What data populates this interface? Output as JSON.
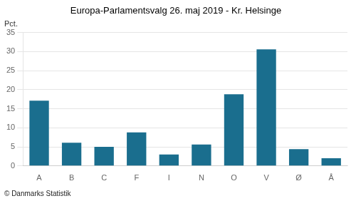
{
  "chart_data": {
    "type": "bar",
    "title": "Europa-Parlamentsvalg 26. maj 2019 - Kr. Helsinge",
    "ylabel": "Pct.",
    "footer": "© Danmarks Statistik",
    "categories": [
      "A",
      "B",
      "C",
      "F",
      "I",
      "N",
      "O",
      "V",
      "Ø",
      "Å"
    ],
    "values": [
      17.1,
      6.1,
      5.0,
      8.8,
      3.0,
      5.6,
      18.8,
      30.6,
      4.4,
      2.0
    ],
    "color": "#1a6e8e",
    "ylim": [
      0,
      35
    ],
    "yticks": [
      0,
      5,
      10,
      15,
      20,
      25,
      30,
      35
    ],
    "grid": true
  }
}
